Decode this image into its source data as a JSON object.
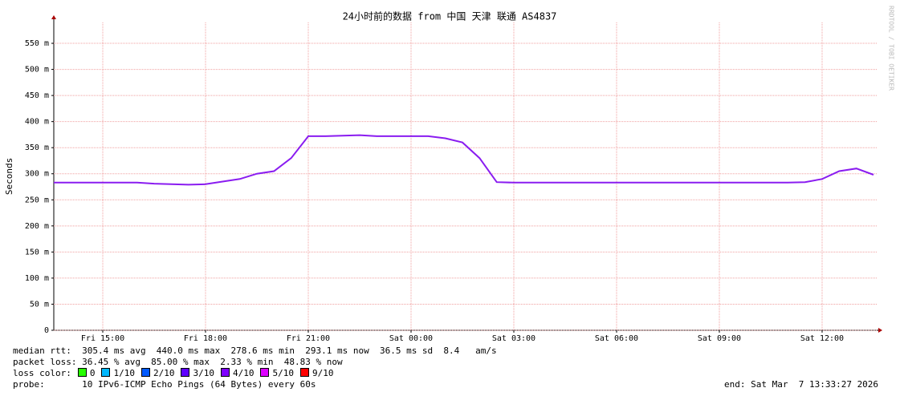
{
  "chart_data": {
    "type": "line",
    "title": "24小时前的数据 from  中国 天津 联通 AS4837",
    "y_label": "Seconds",
    "watermark": "RRDTOOL / TOBI OETIKER",
    "categories": [
      null,
      null,
      null,
      "Fri 15:00",
      null,
      null,
      null,
      null,
      null,
      "Fri 18:00",
      null,
      null,
      null,
      null,
      null,
      "Fri 21:00",
      null,
      null,
      null,
      null,
      null,
      "Sat 00:00",
      null,
      null,
      null,
      null,
      null,
      "Sat 03:00",
      null,
      null,
      null,
      null,
      null,
      "Sat 06:00",
      null,
      null,
      null,
      null,
      null,
      "Sat 09:00",
      null,
      null,
      null,
      null,
      null,
      "Sat 12:00",
      null,
      null,
      null
    ],
    "series": [
      {
        "name": "median rtt",
        "color": "#8a1cf0",
        "values": [
          0.283,
          0.283,
          0.283,
          0.283,
          0.283,
          0.283,
          0.281,
          0.28,
          0.279,
          0.28,
          0.285,
          0.29,
          0.3,
          0.305,
          0.33,
          0.372,
          0.372,
          0.373,
          0.374,
          0.372,
          0.372,
          0.372,
          0.372,
          0.368,
          0.36,
          0.33,
          0.284,
          0.283,
          0.283,
          0.283,
          0.283,
          0.283,
          0.283,
          0.283,
          0.283,
          0.283,
          0.283,
          0.283,
          0.283,
          0.283,
          0.283,
          0.283,
          0.283,
          0.283,
          0.284,
          0.29,
          0.305,
          0.31,
          0.298
        ]
      }
    ],
    "ylim": [
      0,
      0.59
    ],
    "yticks": [
      0,
      {
        "value": 0.05,
        "label": "50 m"
      },
      {
        "value": 0.1,
        "label": "100 m"
      },
      {
        "value": 0.15,
        "label": "150 m"
      },
      {
        "value": 0.2,
        "label": "200 m"
      },
      {
        "value": 0.25,
        "label": "250 m"
      },
      {
        "value": 0.3,
        "label": "300 m"
      },
      {
        "value": 0.35,
        "label": "350 m"
      },
      {
        "value": 0.4,
        "label": "400 m"
      },
      {
        "value": 0.45,
        "label": "450 m"
      },
      {
        "value": 0.5,
        "label": "500 m"
      },
      {
        "value": 0.55,
        "label": "550 m"
      }
    ],
    "grid": true
  },
  "footer": {
    "median_rtt": "median rtt:  305.4 ms avg  440.0 ms max  278.6 ms min  293.1 ms now  36.5 ms sd  8.4   am/s",
    "packet_loss": "packet loss: 36.45 % avg  85.00 % max  2.33 % min  48.83 % now",
    "loss_color_label": "loss color:",
    "loss_colors": [
      {
        "label": "0",
        "color": "#26ff00"
      },
      {
        "label": "1/10",
        "color": "#00b8ff"
      },
      {
        "label": "2/10",
        "color": "#0059ff"
      },
      {
        "label": "3/10",
        "color": "#5e00ff"
      },
      {
        "label": "4/10",
        "color": "#7e00ff"
      },
      {
        "label": "5/10",
        "color": "#dd00ff"
      },
      {
        "label": "9/10",
        "color": "#ff0000"
      }
    ],
    "probe": "probe:       10 IPv6-ICMP Echo Pings (64 Bytes) every 60s",
    "end": "end: Sat Mar  7 13:33:27 2026"
  }
}
